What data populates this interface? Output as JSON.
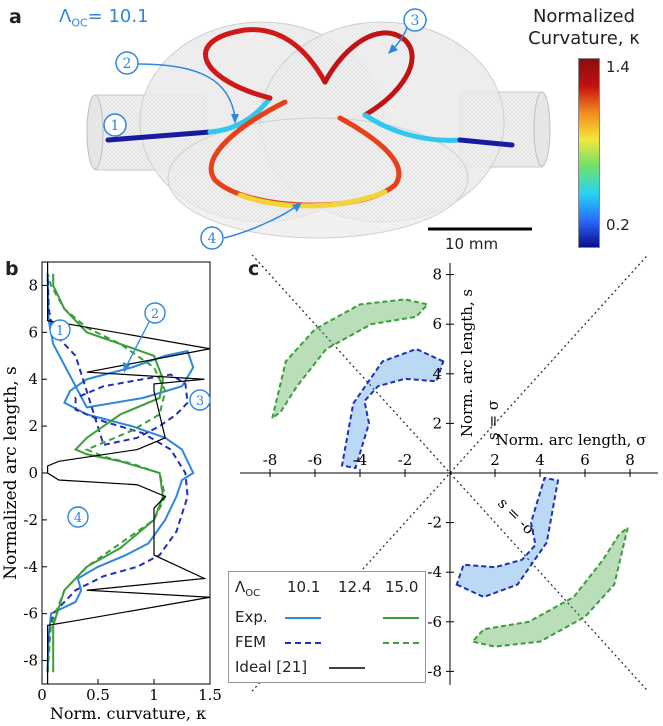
{
  "panel_a": {
    "label": "a",
    "lambda_text": "Λ",
    "lambda_sub": "OC",
    "lambda_value": "= 10.1",
    "callouts": [
      "1",
      "2",
      "3",
      "4"
    ],
    "scale_bar_label": "10 mm",
    "colorbar": {
      "title_line1": "Normalized",
      "title_line2": "Curvature, κ",
      "max_label": "1.4",
      "min_label": "0.2",
      "colors": [
        "#0b0b8f",
        "#2a6cff",
        "#27d4f0",
        "#6fe06c",
        "#f2e83b",
        "#f48a1e",
        "#c21010",
        "#8a0e0e"
      ]
    }
  },
  "panel_b": {
    "label": "b",
    "callouts": [
      "1",
      "2",
      "3",
      "4"
    ]
  },
  "panel_c": {
    "label": "c",
    "diag1_label": "s = σ",
    "diag2_label": "s = -σ"
  },
  "legend": {
    "header": "Λ",
    "header_sub": "OC",
    "columns": [
      "10.1",
      "12.4",
      "15.0"
    ],
    "rows": [
      "Exp.",
      "FEM",
      "Ideal [21]"
    ]
  },
  "chart_data": [
    {
      "type": "line",
      "panel": "b",
      "xlabel": "Norm. curvature, κ",
      "ylabel": "Normalized arc length, s",
      "xlim": [
        0,
        1.5
      ],
      "ylim": [
        -9,
        9
      ],
      "xticks": [
        "0",
        "0.5",
        "1",
        "1.5"
      ],
      "yticks": [
        "-8",
        "-6",
        "-4",
        "-2",
        "0",
        "2",
        "4",
        "6",
        "8"
      ],
      "series": [
        {
          "name": "Exp. 10.1",
          "color": "#2f86de",
          "style": "solid",
          "x": [
            0.05,
            0.06,
            0.08,
            0.3,
            0.35,
            0.32,
            0.5,
            0.75,
            0.95,
            1.1,
            1.2,
            1.25,
            1.35,
            1.3,
            1.25,
            1.1,
            0.8,
            0.4,
            0.2,
            0.25,
            0.4,
            0.8,
            1.1,
            1.3,
            1.35,
            1.25,
            0.9,
            0.4,
            0.1,
            0.06,
            0.05
          ],
          "y": [
            -8.5,
            -7,
            -6,
            -5.5,
            -5,
            -4.5,
            -4,
            -3.5,
            -3,
            -2,
            -1,
            -0.3,
            0,
            0.5,
            1,
            1.5,
            2,
            2.5,
            3,
            3.5,
            4,
            4.5,
            5,
            5.2,
            4.5,
            3.7,
            3.2,
            2.8,
            5.5,
            6.5,
            8.5
          ]
        },
        {
          "name": "FEM 10.1",
          "color": "#1f2fb8",
          "style": "dashed",
          "x": [
            0.05,
            0.06,
            0.1,
            0.3,
            0.55,
            0.85,
            1.05,
            1.2,
            1.3,
            1.28,
            1.15,
            0.9,
            0.55,
            0.3,
            0.3,
            0.55,
            0.9,
            1.15,
            1.28,
            1.3,
            1.2,
            1.05,
            0.85,
            0.55,
            0.3,
            0.1,
            0.06,
            0.05
          ],
          "y": [
            -8.5,
            -7,
            -6,
            -5,
            -4.4,
            -4,
            -3.5,
            -2.5,
            -1,
            0,
            1,
            1.7,
            2.2,
            2.7,
            3.2,
            3.7,
            4,
            4.2,
            3.8,
            3,
            2.5,
            2,
            1.5,
            1.2,
            5,
            6,
            7,
            8.5
          ]
        },
        {
          "name": "Exp. 15.0",
          "color": "#3a9e3a",
          "style": "solid",
          "x": [
            0.1,
            0.1,
            0.2,
            0.4,
            0.7,
            1.0,
            1.08,
            1.05,
            0.7,
            0.4,
            0.3,
            0.4,
            0.7,
            1.05,
            1.08,
            1.0,
            0.7,
            0.4,
            0.2,
            0.1,
            0.1
          ],
          "y": [
            -8.5,
            -6.5,
            -5,
            -4,
            -3.2,
            -2,
            -1,
            0,
            0.5,
            0.8,
            1,
            1.5,
            2.5,
            3.2,
            4,
            5,
            5.5,
            6,
            7,
            8,
            8.5
          ]
        },
        {
          "name": "FEM 15.0",
          "color": "#3a9e3a",
          "style": "dashed",
          "x": [
            0.05,
            0.08,
            0.2,
            0.4,
            0.7,
            1.0,
            1.1,
            1.05,
            0.8,
            0.55,
            0.4,
            0.55,
            0.8,
            1.05,
            1.1,
            1.0,
            0.7,
            0.4,
            0.2,
            0.08,
            0.05
          ],
          "y": [
            -8.5,
            -6.5,
            -5,
            -4,
            -3,
            -2,
            -1,
            0,
            0.4,
            0.7,
            1,
            1.3,
            1.8,
            2.5,
            3.5,
            4.5,
            5.5,
            6.2,
            7,
            8,
            8.5
          ]
        },
        {
          "name": "Ideal [21]",
          "color": "#000000",
          "style": "solid",
          "x": [
            0.05,
            0.05,
            0.3,
            1.5,
            0.4,
            1.45,
            1.0,
            1.0,
            1.1,
            0.85,
            0.15,
            0.05,
            0.05,
            0.15,
            0.85,
            1.1,
            1.0,
            1.0,
            1.45,
            0.4,
            1.5,
            0.3,
            0.05,
            0.05
          ],
          "y": [
            -9,
            -6.5,
            -6.3,
            -5.3,
            -5.0,
            -4.5,
            -3.5,
            -1.5,
            -1.0,
            -0.5,
            -0.3,
            0,
            0.3,
            0.5,
            1.0,
            1.5,
            3.5,
            3.8,
            4.0,
            4.3,
            5.3,
            6.3,
            6.5,
            9
          ]
        }
      ]
    },
    {
      "type": "scatter",
      "panel": "c",
      "xlabel": "Norm. arc length, σ",
      "ylabel": "Norm. arc length, s",
      "xlim": [
        -9,
        9
      ],
      "ylim": [
        -9,
        9
      ],
      "xticks": [
        "-8",
        "-6",
        "-4",
        "-2",
        "2",
        "4",
        "6",
        "8"
      ],
      "yticks": [
        "-8",
        "-6",
        "-4",
        "-2",
        "2",
        "4",
        "6",
        "8"
      ],
      "series": [
        {
          "name": "Exp. 10.1 region",
          "color": "#3b8fe0",
          "x": [
            -0.3,
            -1.5,
            -3.0,
            -4.3,
            -4.8,
            -4.2,
            -3.6,
            -3.8,
            -3.2,
            -2.0,
            -0.6,
            -0.3
          ],
          "y": [
            4.5,
            5.0,
            4.5,
            2.8,
            0.3,
            0.2,
            2.0,
            2.9,
            3.5,
            3.8,
            3.7,
            4.5
          ]
        },
        {
          "name": "Exp. 15.0 region",
          "color": "#3a9e3a",
          "x": [
            -7.9,
            -7.3,
            -6.0,
            -4.0,
            -2.0,
            -1.0,
            -1.5,
            -3.5,
            -5.5,
            -6.8,
            -7.5,
            -7.9
          ],
          "y": [
            2.2,
            4.5,
            5.8,
            6.8,
            7.0,
            6.8,
            6.3,
            6.0,
            5.0,
            3.5,
            2.5,
            2.2
          ]
        }
      ]
    }
  ]
}
